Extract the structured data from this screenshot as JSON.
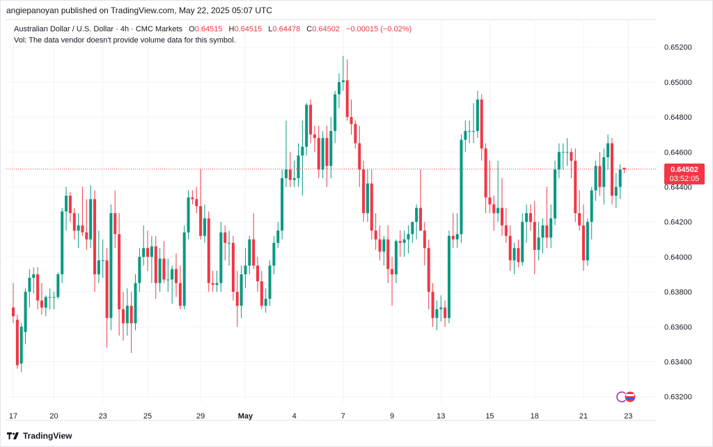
{
  "header": {
    "publisher_text": "angiepanoyan published on TradingView.com, May 22, 2025 05:07 UTC"
  },
  "legend": {
    "symbol_line": "Australian Dollar / U.S. Dollar · 4h · CMC Markets",
    "open_label": "O",
    "open_value": "0.64515",
    "high_label": "H",
    "high_value": "0.64515",
    "low_label": "L",
    "low_value": "0.64478",
    "close_label": "C",
    "close_value": "0.64502",
    "change": "−0.00015 (−0.02%)",
    "vol_text": "Vol: The data vendor doesn't provide volume data for this symbol."
  },
  "price_label": {
    "price": "0.64502",
    "countdown": "03:52:05"
  },
  "footer": {
    "brand": "TradingView"
  },
  "colors": {
    "up": "#089981",
    "down": "#f23645",
    "grid": "#f0f3fa",
    "text": "#131722"
  },
  "chart_data": {
    "type": "candlestick",
    "title": "Australian Dollar / U.S. Dollar · 4h · CMC Markets",
    "symbol": "AUDUSD",
    "timeframe": "4h",
    "ylim": [
      0.631,
      0.653
    ],
    "y_ticks": [
      "0.65200",
      "0.65000",
      "0.64800",
      "0.64600",
      "0.64400",
      "0.64200",
      "0.64000",
      "0.63800",
      "0.63600",
      "0.63400",
      "0.63200"
    ],
    "x_ticks": [
      {
        "label": "17",
        "bar": 0
      },
      {
        "label": "20",
        "bar": 10
      },
      {
        "label": "23",
        "bar": 22
      },
      {
        "label": "25",
        "bar": 33
      },
      {
        "label": "29",
        "bar": 46
      },
      {
        "label": "May",
        "bar": 57
      },
      {
        "label": "4",
        "bar": 69
      },
      {
        "label": "7",
        "bar": 81
      },
      {
        "label": "9",
        "bar": 93
      },
      {
        "label": "13",
        "bar": 105
      },
      {
        "label": "15",
        "bar": 117
      },
      {
        "label": "18",
        "bar": 128
      },
      {
        "label": "21",
        "bar": 140
      },
      {
        "label": "23",
        "bar": 151
      }
    ],
    "last_price": 0.64502,
    "candles": [
      [
        0.6371,
        0.6385,
        0.6362,
        0.6366
      ],
      [
        0.6364,
        0.6367,
        0.6336,
        0.6338
      ],
      [
        0.6339,
        0.6362,
        0.6334,
        0.636
      ],
      [
        0.6357,
        0.6382,
        0.635,
        0.638
      ],
      [
        0.638,
        0.6393,
        0.6371,
        0.6388
      ],
      [
        0.6388,
        0.6394,
        0.6379,
        0.639
      ],
      [
        0.639,
        0.6394,
        0.637,
        0.6375
      ],
      [
        0.6375,
        0.6385,
        0.6367,
        0.6371
      ],
      [
        0.6371,
        0.6378,
        0.6366,
        0.6377
      ],
      [
        0.6377,
        0.6382,
        0.637,
        0.6377
      ],
      [
        0.6377,
        0.638,
        0.637,
        0.6377
      ],
      [
        0.6377,
        0.6391,
        0.6376,
        0.639
      ],
      [
        0.639,
        0.6428,
        0.6385,
        0.6426
      ],
      [
        0.6426,
        0.644,
        0.6415,
        0.6435
      ],
      [
        0.6435,
        0.6437,
        0.642,
        0.6425
      ],
      [
        0.6425,
        0.6428,
        0.641,
        0.6415
      ],
      [
        0.6415,
        0.6425,
        0.6405,
        0.6418
      ],
      [
        0.6418,
        0.644,
        0.6412,
        0.6414
      ],
      [
        0.6414,
        0.6433,
        0.6404,
        0.641
      ],
      [
        0.641,
        0.6441,
        0.6405,
        0.6433
      ],
      [
        0.6433,
        0.6438,
        0.638,
        0.639
      ],
      [
        0.639,
        0.6415,
        0.6385,
        0.6398
      ],
      [
        0.6398,
        0.641,
        0.6388,
        0.6398
      ],
      [
        0.6398,
        0.6405,
        0.6348,
        0.6365
      ],
      [
        0.6365,
        0.643,
        0.6358,
        0.6425
      ],
      [
        0.6425,
        0.6438,
        0.6405,
        0.6413
      ],
      [
        0.6413,
        0.6425,
        0.6355,
        0.637
      ],
      [
        0.637,
        0.638,
        0.6352,
        0.6362
      ],
      [
        0.6362,
        0.6382,
        0.6355,
        0.6372
      ],
      [
        0.6372,
        0.638,
        0.6345,
        0.6362
      ],
      [
        0.6362,
        0.639,
        0.6358,
        0.6385
      ],
      [
        0.6385,
        0.6405,
        0.638,
        0.64
      ],
      [
        0.64,
        0.6418,
        0.6395,
        0.6405
      ],
      [
        0.6405,
        0.6415,
        0.6392,
        0.64
      ],
      [
        0.64,
        0.6412,
        0.6385,
        0.6406
      ],
      [
        0.6406,
        0.6412,
        0.6376,
        0.6385
      ],
      [
        0.6385,
        0.6405,
        0.638,
        0.6399
      ],
      [
        0.6399,
        0.6409,
        0.6385,
        0.6387
      ],
      [
        0.6387,
        0.6399,
        0.638,
        0.6387
      ],
      [
        0.6387,
        0.6395,
        0.6373,
        0.6393
      ],
      [
        0.6393,
        0.6402,
        0.6377,
        0.6385
      ],
      [
        0.6385,
        0.6395,
        0.637,
        0.6372
      ],
      [
        0.6372,
        0.6418,
        0.637,
        0.6414
      ],
      [
        0.6414,
        0.6438,
        0.641,
        0.6434
      ],
      [
        0.6434,
        0.6438,
        0.643,
        0.6433
      ],
      [
        0.6433,
        0.644,
        0.6425,
        0.6429
      ],
      [
        0.6429,
        0.645,
        0.641,
        0.6412
      ],
      [
        0.6412,
        0.643,
        0.6408,
        0.6422
      ],
      [
        0.6422,
        0.6426,
        0.638,
        0.6385
      ],
      [
        0.6385,
        0.6392,
        0.638,
        0.6384
      ],
      [
        0.6384,
        0.6392,
        0.638,
        0.6385
      ],
      [
        0.6385,
        0.642,
        0.638,
        0.6414
      ],
      [
        0.6414,
        0.6418,
        0.6398,
        0.6408
      ],
      [
        0.6408,
        0.6415,
        0.6395,
        0.6408
      ],
      [
        0.6408,
        0.6412,
        0.6375,
        0.638
      ],
      [
        0.638,
        0.6392,
        0.636,
        0.6372
      ],
      [
        0.6372,
        0.6395,
        0.6365,
        0.639
      ],
      [
        0.639,
        0.6405,
        0.6382,
        0.6395
      ],
      [
        0.6395,
        0.6412,
        0.639,
        0.641
      ],
      [
        0.641,
        0.6425,
        0.6393,
        0.6395
      ],
      [
        0.6395,
        0.64,
        0.638,
        0.6386
      ],
      [
        0.6386,
        0.6392,
        0.637,
        0.6372
      ],
      [
        0.6372,
        0.6382,
        0.6368,
        0.6376
      ],
      [
        0.6376,
        0.6398,
        0.6372,
        0.6395
      ],
      [
        0.6395,
        0.6412,
        0.639,
        0.6408
      ],
      [
        0.6408,
        0.642,
        0.6405,
        0.6415
      ],
      [
        0.6415,
        0.645,
        0.641,
        0.6445
      ],
      [
        0.6445,
        0.6478,
        0.644,
        0.645
      ],
      [
        0.645,
        0.646,
        0.644,
        0.6444
      ],
      [
        0.6444,
        0.6455,
        0.644,
        0.6445
      ],
      [
        0.6445,
        0.6465,
        0.644,
        0.6458
      ],
      [
        0.6458,
        0.6478,
        0.6435,
        0.6463
      ],
      [
        0.6463,
        0.6488,
        0.6458,
        0.6487
      ],
      [
        0.6487,
        0.649,
        0.6465,
        0.647
      ],
      [
        0.647,
        0.6475,
        0.646,
        0.6468
      ],
      [
        0.6468,
        0.6475,
        0.6445,
        0.645
      ],
      [
        0.645,
        0.6472,
        0.6445,
        0.6468
      ],
      [
        0.6468,
        0.6475,
        0.644,
        0.6452
      ],
      [
        0.6452,
        0.648,
        0.6445,
        0.6472
      ],
      [
        0.6472,
        0.6495,
        0.6465,
        0.6493
      ],
      [
        0.6493,
        0.6505,
        0.6485,
        0.65
      ],
      [
        0.65,
        0.6515,
        0.6495,
        0.6501
      ],
      [
        0.6501,
        0.6513,
        0.6478,
        0.648
      ],
      [
        0.648,
        0.649,
        0.647,
        0.6476
      ],
      [
        0.6476,
        0.6478,
        0.6462,
        0.6465
      ],
      [
        0.6465,
        0.6475,
        0.644,
        0.645
      ],
      [
        0.645,
        0.6455,
        0.642,
        0.6425
      ],
      [
        0.6425,
        0.645,
        0.642,
        0.6442
      ],
      [
        0.6442,
        0.645,
        0.641,
        0.6415
      ],
      [
        0.6415,
        0.6425,
        0.6404,
        0.641
      ],
      [
        0.641,
        0.6418,
        0.6398,
        0.6403
      ],
      [
        0.6403,
        0.6412,
        0.6395,
        0.641
      ],
      [
        0.641,
        0.6418,
        0.6385,
        0.6393
      ],
      [
        0.6393,
        0.64,
        0.6372,
        0.639
      ],
      [
        0.639,
        0.641,
        0.6385,
        0.6409
      ],
      [
        0.6409,
        0.6415,
        0.64,
        0.6408
      ],
      [
        0.6408,
        0.6415,
        0.64,
        0.641
      ],
      [
        0.641,
        0.6418,
        0.6402,
        0.6413
      ],
      [
        0.6413,
        0.642,
        0.6408,
        0.642
      ],
      [
        0.642,
        0.643,
        0.641,
        0.6428
      ],
      [
        0.6428,
        0.645,
        0.6415,
        0.6415
      ],
      [
        0.6415,
        0.642,
        0.6395,
        0.6405
      ],
      [
        0.6405,
        0.641,
        0.637,
        0.638
      ],
      [
        0.638,
        0.6385,
        0.636,
        0.6365
      ],
      [
        0.6365,
        0.6375,
        0.6358,
        0.637
      ],
      [
        0.637,
        0.6378,
        0.6363,
        0.6371
      ],
      [
        0.6371,
        0.6375,
        0.636,
        0.6365
      ],
      [
        0.6365,
        0.6415,
        0.6362,
        0.6412
      ],
      [
        0.6412,
        0.6425,
        0.6405,
        0.641
      ],
      [
        0.641,
        0.6425,
        0.6405,
        0.6413
      ],
      [
        0.6413,
        0.647,
        0.6408,
        0.6467
      ],
      [
        0.6467,
        0.6478,
        0.646,
        0.6472
      ],
      [
        0.6472,
        0.6478,
        0.6465,
        0.6472
      ],
      [
        0.6472,
        0.6488,
        0.6465,
        0.6472
      ],
      [
        0.6472,
        0.6495,
        0.6468,
        0.649
      ],
      [
        0.649,
        0.6493,
        0.6455,
        0.6462
      ],
      [
        0.6462,
        0.6465,
        0.6425,
        0.6434
      ],
      [
        0.6434,
        0.6455,
        0.6425,
        0.643
      ],
      [
        0.643,
        0.6435,
        0.6415,
        0.6425
      ],
      [
        0.6425,
        0.6455,
        0.642,
        0.6428
      ],
      [
        0.6428,
        0.6445,
        0.6412,
        0.6418
      ],
      [
        0.6418,
        0.6428,
        0.6408,
        0.6412
      ],
      [
        0.6412,
        0.6418,
        0.6392,
        0.6398
      ],
      [
        0.6398,
        0.6408,
        0.639,
        0.6405
      ],
      [
        0.6405,
        0.641,
        0.6394,
        0.6397
      ],
      [
        0.6397,
        0.6425,
        0.6395,
        0.642
      ],
      [
        0.642,
        0.643,
        0.6408,
        0.6425
      ],
      [
        0.6425,
        0.643,
        0.6415,
        0.642
      ],
      [
        0.642,
        0.6432,
        0.639,
        0.6404
      ],
      [
        0.6404,
        0.642,
        0.6398,
        0.6411
      ],
      [
        0.6411,
        0.6422,
        0.6402,
        0.6418
      ],
      [
        0.6418,
        0.644,
        0.6405,
        0.6411
      ],
      [
        0.6411,
        0.643,
        0.6405,
        0.6422
      ],
      [
        0.6422,
        0.6455,
        0.6418,
        0.645
      ],
      [
        0.645,
        0.6465,
        0.6445,
        0.646
      ],
      [
        0.646,
        0.6465,
        0.645,
        0.646
      ],
      [
        0.646,
        0.6468,
        0.6452,
        0.646
      ],
      [
        0.646,
        0.6462,
        0.6445,
        0.6455
      ],
      [
        0.6455,
        0.6462,
        0.642,
        0.6425
      ],
      [
        0.6425,
        0.6438,
        0.6415,
        0.6418
      ],
      [
        0.6418,
        0.643,
        0.6392,
        0.6398
      ],
      [
        0.6398,
        0.6422,
        0.6395,
        0.642
      ],
      [
        0.642,
        0.644,
        0.641,
        0.6438
      ],
      [
        0.6438,
        0.6455,
        0.6432,
        0.6452
      ],
      [
        0.6452,
        0.646,
        0.6435,
        0.644
      ],
      [
        0.644,
        0.6462,
        0.643,
        0.6457
      ],
      [
        0.6457,
        0.647,
        0.645,
        0.6465
      ],
      [
        0.6465,
        0.6468,
        0.643,
        0.6435
      ],
      [
        0.6435,
        0.6448,
        0.6428,
        0.644
      ],
      [
        0.644,
        0.6453,
        0.6433,
        0.645
      ],
      [
        0.6451,
        0.6451,
        0.6448,
        0.645
      ]
    ]
  }
}
